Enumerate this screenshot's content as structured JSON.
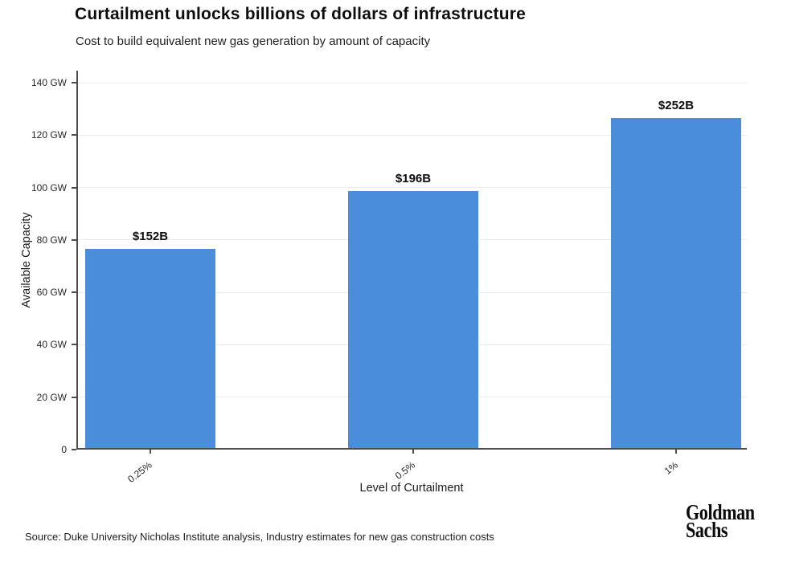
{
  "header": {
    "title": "Curtailment unlocks billions of dollars of infrastructure",
    "subtitle": "Cost to build equivalent new gas generation by amount of capacity"
  },
  "chart_data": {
    "type": "bar",
    "categories": [
      "0.25%",
      "0.5%",
      "1%"
    ],
    "values": [
      76,
      98,
      126
    ],
    "value_unit": "GW",
    "bar_labels": [
      "$152B",
      "$196B",
      "$252B"
    ],
    "xlabel": "Level of Curtailment",
    "ylabel": "Available Capacity",
    "ylim": [
      0,
      144.6
    ],
    "yticks": [
      0,
      20,
      40,
      60,
      80,
      100,
      120,
      140
    ],
    "ytick_labels": [
      "0",
      "20 GW",
      "40 GW",
      "60 GW",
      "80 GW",
      "100 GW",
      "120 GW",
      "140 GW"
    ],
    "grid": "horizontal",
    "legend": "none",
    "bar_color": "#4a8edb"
  },
  "footer": {
    "source": "Source: Duke University Nicholas Institute analysis, Industry estimates for new gas construction costs",
    "logo_line1": "Goldman",
    "logo_line2": "Sachs"
  }
}
